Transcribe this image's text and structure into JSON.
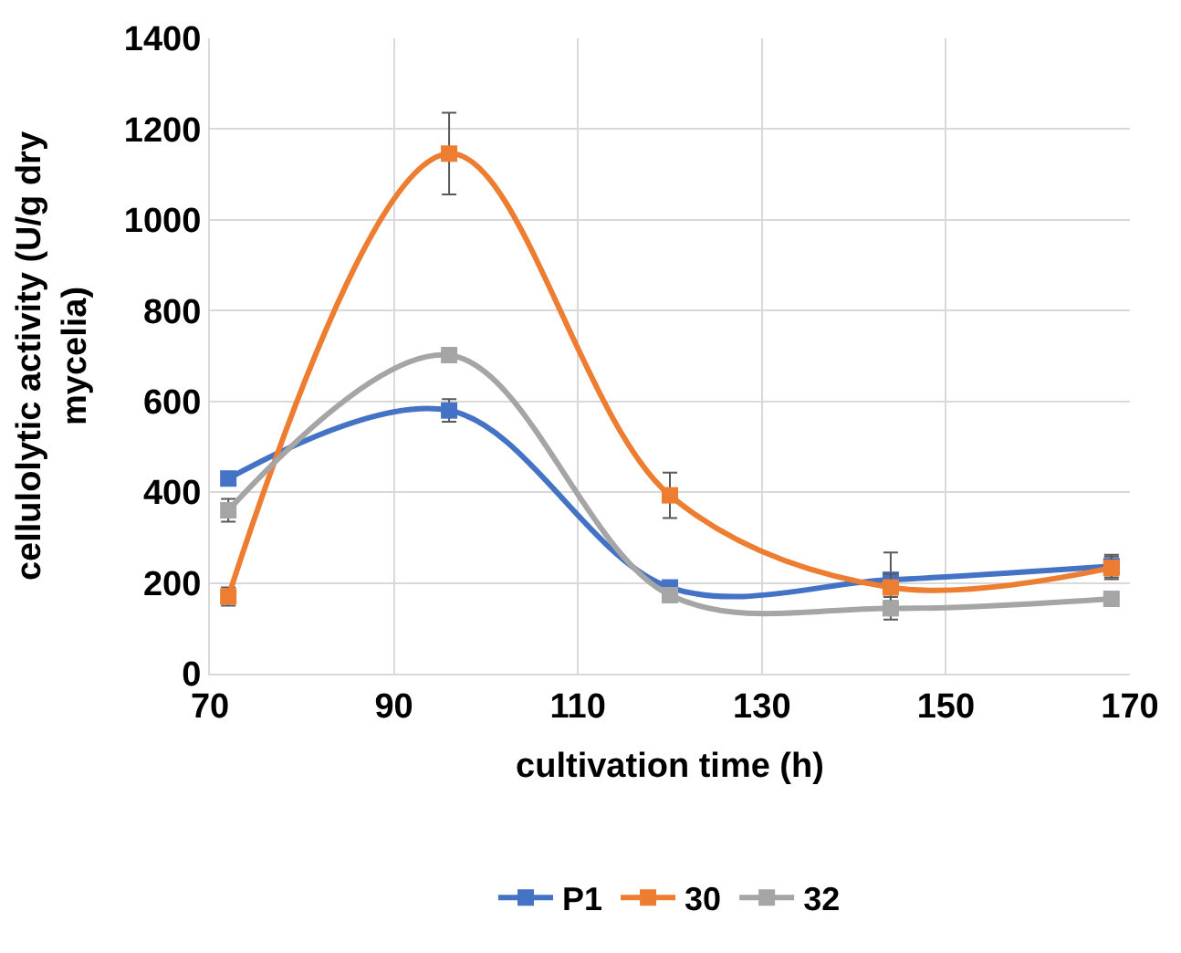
{
  "chart_data": {
    "type": "line",
    "xlabel": "cultivation time (h)",
    "ylabel": "cellulolytic activity (U/g dry mycelia)",
    "x": [
      72,
      96,
      120,
      144,
      168
    ],
    "series": [
      {
        "name": "P1",
        "color": "#4472c4",
        "values": [
          430,
          580,
          190,
          207,
          237
        ],
        "errors": [
          null,
          25,
          null,
          60,
          25
        ]
      },
      {
        "name": "30",
        "color": "#ed7d31",
        "values": [
          170,
          1146,
          393,
          190,
          233
        ],
        "errors": [
          20,
          90,
          50,
          30,
          25
        ]
      },
      {
        "name": "32",
        "color": "#a5a5a5",
        "values": [
          360,
          702,
          173,
          144,
          165
        ],
        "errors": [
          25,
          null,
          null,
          25,
          null
        ]
      }
    ],
    "xlim": [
      70,
      170
    ],
    "xticks": [
      70,
      90,
      110,
      130,
      150,
      170
    ],
    "ylim": [
      0,
      1400
    ],
    "yticks": [
      0,
      200,
      400,
      600,
      800,
      1000,
      1200,
      1400
    ],
    "grid": true,
    "legend": "bottom",
    "marker": "square",
    "line_style": "solid"
  }
}
